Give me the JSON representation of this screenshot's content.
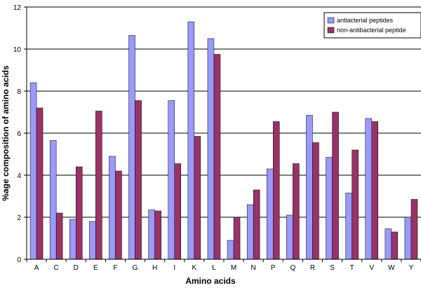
{
  "chart_data": {
    "type": "bar",
    "title": "",
    "xlabel": "Amino acids",
    "ylabel": "%age composition of amino acids",
    "ylim": [
      0,
      12
    ],
    "yticks": [
      0,
      2,
      4,
      6,
      8,
      10,
      12
    ],
    "grid": true,
    "legend_position": "top-right",
    "categories": [
      "A",
      "C",
      "D",
      "E",
      "F",
      "G",
      "H",
      "I",
      "K",
      "L",
      "M",
      "N",
      "P",
      "Q",
      "R",
      "S",
      "T",
      "V",
      "W",
      "Y"
    ],
    "series": [
      {
        "name": "antiacterial peptides",
        "color": "#9999ff",
        "values": [
          8.4,
          5.65,
          1.9,
          1.8,
          4.9,
          10.65,
          2.35,
          7.55,
          11.3,
          10.5,
          0.9,
          2.6,
          4.3,
          2.1,
          6.85,
          4.85,
          3.15,
          6.7,
          1.45,
          2.0
        ]
      },
      {
        "name": "non-antibacterial peptide",
        "color": "#993366",
        "values": [
          7.2,
          2.2,
          4.4,
          7.05,
          4.2,
          7.55,
          2.3,
          4.55,
          5.85,
          9.75,
          2.0,
          3.3,
          6.55,
          4.55,
          5.55,
          7.0,
          5.2,
          6.55,
          1.3,
          2.85
        ]
      }
    ]
  }
}
